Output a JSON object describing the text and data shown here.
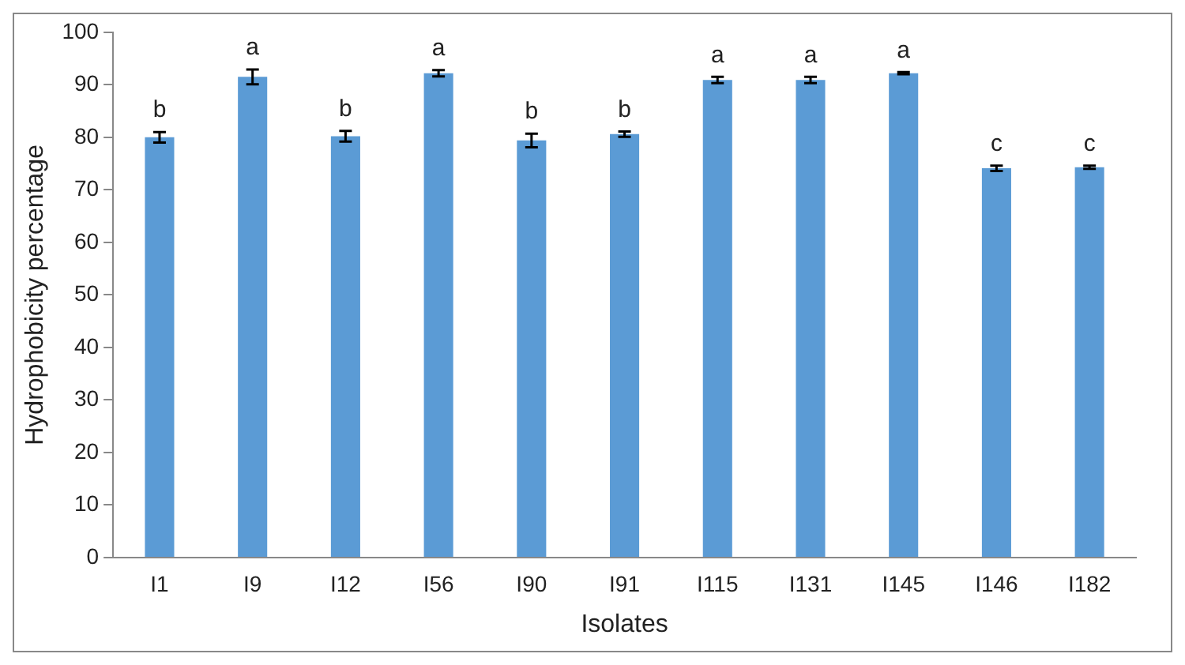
{
  "chart_data": {
    "type": "bar",
    "xlabel": "Isolates",
    "ylabel": "Hydrophobicity percentage",
    "categories": [
      "I1",
      "I9",
      "I12",
      "I56",
      "I90",
      "I91",
      "I115",
      "I131",
      "I145",
      "I146",
      "I182"
    ],
    "values": [
      80,
      91.5,
      80.2,
      92.2,
      79.4,
      80.6,
      90.9,
      90.9,
      92.2,
      74.1,
      74.3
    ],
    "errors": [
      1,
      1.4,
      1,
      0.6,
      1.3,
      0.5,
      0.6,
      0.6,
      0.2,
      0.5,
      0.3
    ],
    "color": "#5b9bd5",
    "ylim": [
      0,
      100
    ],
    "yticks": [
      0,
      10,
      20,
      30,
      40,
      50,
      60,
      70,
      80,
      90,
      100
    ],
    "grid": false,
    "legend": false,
    "annotations": [
      {
        "text": "b",
        "x": "I1",
        "y": 81
      },
      {
        "text": "a",
        "x": "I9",
        "y": 92.9
      },
      {
        "text": "b",
        "x": "I12",
        "y": 81.2
      },
      {
        "text": "a",
        "x": "I56",
        "y": 92.8
      },
      {
        "text": "b",
        "x": "I90",
        "y": 80.7
      },
      {
        "text": "b",
        "x": "I91",
        "y": 81.1
      },
      {
        "text": "a",
        "x": "I115",
        "y": 91.5
      },
      {
        "text": "a",
        "x": "I131",
        "y": 91.5
      },
      {
        "text": "a",
        "x": "I145",
        "y": 92.4
      },
      {
        "text": "c",
        "x": "I146",
        "y": 74.6
      },
      {
        "text": "c",
        "x": "I182",
        "y": 74.6
      }
    ]
  }
}
